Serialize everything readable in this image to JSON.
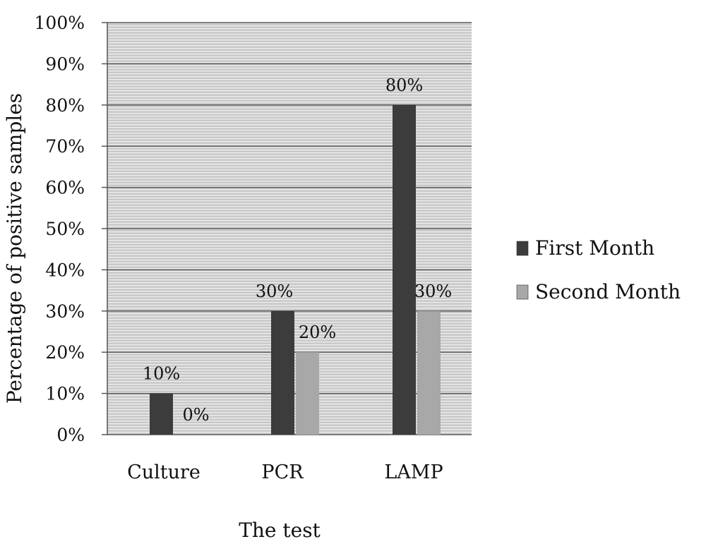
{
  "chart_data": {
    "type": "bar",
    "categories": [
      "Culture",
      "PCR",
      "LAMP"
    ],
    "series": [
      {
        "name": "First Month",
        "values": [
          10,
          30,
          80
        ],
        "labels": [
          "10%",
          "30%",
          "80%"
        ],
        "color": "#3c3c3c"
      },
      {
        "name": "Second Month",
        "values": [
          0,
          20,
          30
        ],
        "labels": [
          "0%",
          "20%",
          "30%"
        ],
        "color": "#a8a8a8"
      }
    ],
    "xlabel": "The test",
    "ylabel": "Percentage of positive samples",
    "ylim": [
      0,
      100
    ],
    "yticks": [
      "0%",
      "10%",
      "20%",
      "30%",
      "40%",
      "50%",
      "60%",
      "70%",
      "80%",
      "90%",
      "100%"
    ],
    "grid": true,
    "legend_position": "right",
    "plot_background": "#c6c6c6",
    "gridline_color": "#5a5a5a"
  }
}
